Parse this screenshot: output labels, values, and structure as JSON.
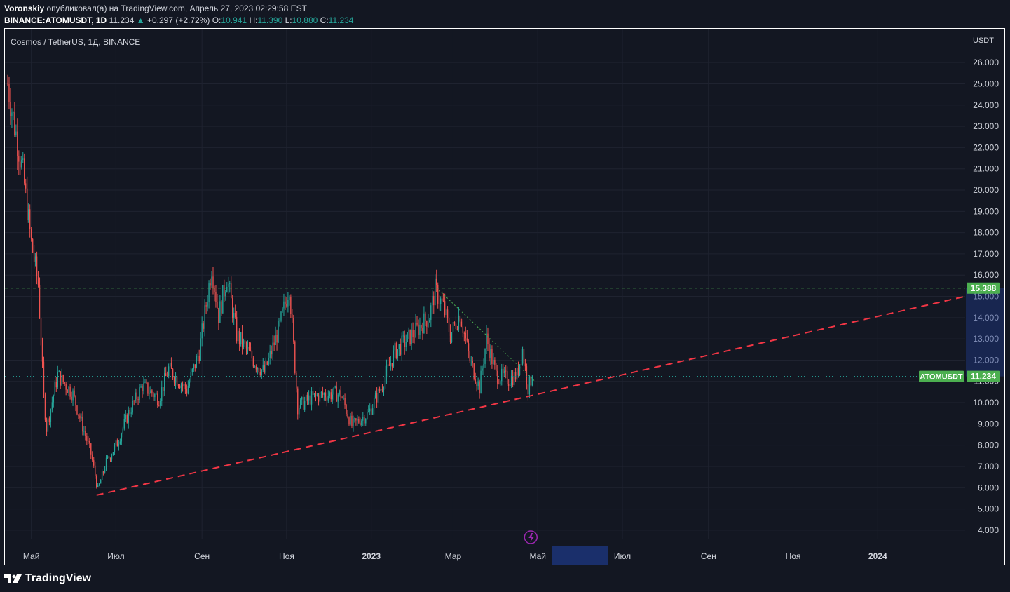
{
  "header": {
    "author": "Voronskiy",
    "published": "опубликовал(а) на TradingView.com, Апрель 27, 2023 02:29:58 EST",
    "symbol": "BINANCE:ATOMUSDT, 1D",
    "last": "11.234",
    "change": "+0.297 (+2.72%)",
    "o_label": "O:",
    "o": "10.941",
    "h_label": "H:",
    "h": "11.390",
    "l_label": "L:",
    "l": "10.880",
    "c_label": "C:",
    "c": "11.234"
  },
  "subtitle": "Cosmos / TetherUS, 1Д, BINANCE",
  "footer": {
    "brand": "TradingView"
  },
  "colors": {
    "up": "#26a69a",
    "down": "#ef5350",
    "trend": "#f23645",
    "level": "#4caf50",
    "bg": "#131722",
    "grid": "#1f2330"
  },
  "chart_data": {
    "type": "candlestick",
    "currency": "USDT",
    "y_ticks": [
      "4.000",
      "5.000",
      "6.000",
      "7.000",
      "8.000",
      "9.000",
      "10.000",
      "11.000",
      "12.000",
      "13.000",
      "14.000",
      "15.000",
      "16.000",
      "17.000",
      "18.000",
      "19.000",
      "20.000",
      "21.000",
      "22.000",
      "23.000",
      "24.000",
      "25.000",
      "26.000"
    ],
    "ylim": [
      3.6,
      26.6
    ],
    "x_ticks": [
      "Май",
      "Июл",
      "Сен",
      "Ноя",
      "2023",
      "Мар",
      "Май",
      "Июл",
      "Сен",
      "Ноя",
      "2024"
    ],
    "x_tick_dates": [
      "2022-05-01",
      "2022-07-01",
      "2022-09-01",
      "2022-11-01",
      "2023-01-01",
      "2023-03-01",
      "2023-05-01",
      "2023-07-01",
      "2023-09-01",
      "2023-11-01",
      "2024-01-01"
    ],
    "x_range": [
      "2022-04-14",
      "2024-03-04"
    ],
    "anchors": [
      [
        "2022-04-14",
        25.0
      ],
      [
        "2022-04-18",
        23.4
      ],
      [
        "2022-04-25",
        20.8
      ],
      [
        "2022-05-01",
        17.5
      ],
      [
        "2022-05-06",
        15.6
      ],
      [
        "2022-05-10",
        10.2
      ],
      [
        "2022-05-12",
        8.8
      ],
      [
        "2022-05-20",
        11.3
      ],
      [
        "2022-05-31",
        10.4
      ],
      [
        "2022-06-05",
        9.3
      ],
      [
        "2022-06-13",
        7.6
      ],
      [
        "2022-06-18",
        5.9
      ],
      [
        "2022-06-24",
        7.2
      ],
      [
        "2022-07-02",
        8.1
      ],
      [
        "2022-07-10",
        9.5
      ],
      [
        "2022-07-20",
        10.8
      ],
      [
        "2022-08-01",
        10.2
      ],
      [
        "2022-08-08",
        11.6
      ],
      [
        "2022-08-21",
        10.6
      ],
      [
        "2022-08-30",
        12.4
      ],
      [
        "2022-09-08",
        16.4
      ],
      [
        "2022-09-13",
        14.1
      ],
      [
        "2022-09-19",
        15.9
      ],
      [
        "2022-09-26",
        13.2
      ],
      [
        "2022-10-08",
        12.0
      ],
      [
        "2022-10-16",
        11.4
      ],
      [
        "2022-10-27",
        13.6
      ],
      [
        "2022-11-03",
        15.5
      ],
      [
        "2022-11-09",
        9.8
      ],
      [
        "2022-11-18",
        10.2
      ],
      [
        "2022-11-29",
        10.4
      ],
      [
        "2022-12-10",
        10.4
      ],
      [
        "2022-12-18",
        8.9
      ],
      [
        "2022-12-30",
        9.5
      ],
      [
        "2023-01-08",
        10.7
      ],
      [
        "2023-01-18",
        12.4
      ],
      [
        "2023-02-01",
        13.3
      ],
      [
        "2023-02-12",
        14.1
      ],
      [
        "2023-02-16",
        15.3
      ],
      [
        "2023-02-22",
        14.5
      ],
      [
        "2023-02-27",
        13.2
      ],
      [
        "2023-03-06",
        14.2
      ],
      [
        "2023-03-13",
        12.0
      ],
      [
        "2023-03-20",
        10.7
      ],
      [
        "2023-03-25",
        13.0
      ],
      [
        "2023-04-01",
        11.3
      ],
      [
        "2023-04-10",
        11.1
      ],
      [
        "2023-04-16",
        11.3
      ],
      [
        "2023-04-20",
        12.5
      ],
      [
        "2023-04-24",
        10.7
      ],
      [
        "2023-04-27",
        11.234
      ]
    ],
    "support_line": {
      "from": [
        "2022-06-17",
        5.65
      ],
      "to": [
        "2024-03-04",
        15.0
      ]
    },
    "resistance_line": {
      "from": [
        "2023-02-17",
        15.4
      ],
      "to": [
        "2023-04-29",
        11.0
      ]
    },
    "level": {
      "value": 15.388,
      "label": "15.388"
    },
    "last_price": {
      "value": 11.234,
      "label": "11.234",
      "name": "ATOMUSDT"
    }
  }
}
